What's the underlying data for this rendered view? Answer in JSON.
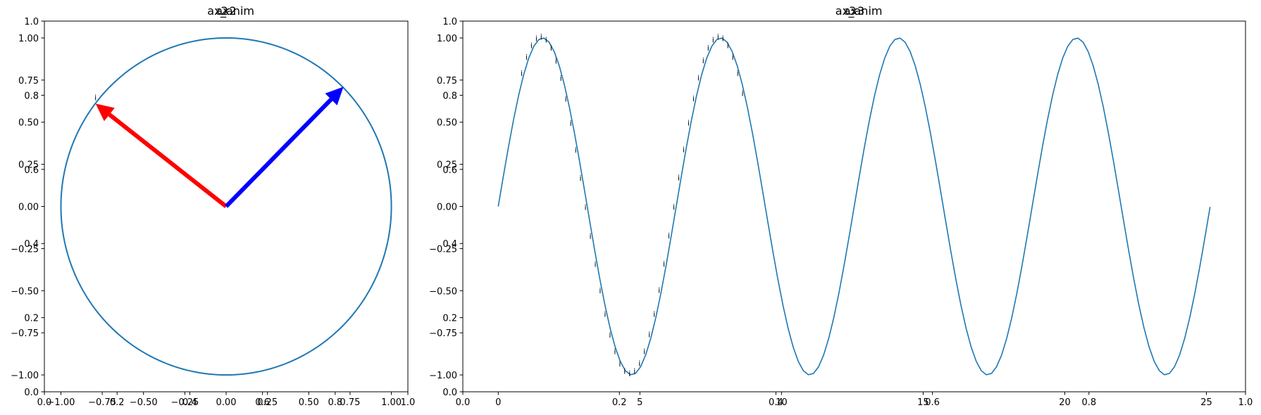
{
  "chart_data": [
    {
      "type": "line",
      "panel": "left",
      "titles": [
        "ax2",
        "ax2",
        "_anim"
      ],
      "twin_axes": {
        "base": {
          "xlim": [
            0.0,
            1.0
          ],
          "ylim": [
            0.0,
            1.0
          ],
          "xticks": [
            0.0,
            0.2,
            0.4,
            0.6,
            0.8,
            1.0
          ],
          "xtick_labels": [
            "0.0",
            "0.2",
            "0.4",
            "0.6",
            "0.8",
            "1.0"
          ],
          "yticks": [
            0.0,
            0.2,
            0.4,
            0.6,
            0.8,
            1.0
          ],
          "ytick_labels": [
            "0.0",
            "0.2",
            "0.4",
            "0.6",
            "0.8",
            "1.0"
          ]
        },
        "data": {
          "xlim": [
            -1.1,
            1.1
          ],
          "ylim": [
            -1.1,
            1.1
          ],
          "xticks": [
            -1.0,
            -0.75,
            -0.5,
            -0.25,
            0.0,
            0.25,
            0.5,
            0.75,
            1.0
          ],
          "xtick_labels": [
            "−1.00",
            "−0.75",
            "−0.50",
            "−0.25",
            "0.00",
            "0.25",
            "0.50",
            "0.75",
            "1.00"
          ],
          "yticks": [
            -1.0,
            -0.75,
            -0.5,
            -0.25,
            0.0,
            0.25,
            0.5,
            0.75,
            1.0
          ],
          "ytick_labels": [
            "−1.00",
            "−0.75",
            "−0.50",
            "−0.25",
            "0.00",
            "0.25",
            "0.50",
            "0.75",
            "1.00"
          ]
        }
      },
      "series": [
        {
          "kind": "circle",
          "center": [
            0,
            0
          ],
          "radius": 1.0,
          "color": "#1f77b4"
        }
      ],
      "arrows": [
        {
          "from": [
            0,
            0
          ],
          "to": [
            -0.79,
            0.61
          ],
          "color": "#ff0000"
        },
        {
          "from": [
            0,
            0
          ],
          "to": [
            0.71,
            0.71
          ],
          "color": "#0000ff"
        }
      ],
      "annotations": [
        {
          "text": "i",
          "x": -0.79,
          "y": 0.63
        }
      ]
    },
    {
      "type": "line",
      "panel": "right",
      "titles": [
        "ax3",
        "ax3",
        "_anim"
      ],
      "twin_axes": {
        "base": {
          "xlim": [
            0.0,
            1.0
          ],
          "ylim": [
            0.0,
            1.0
          ],
          "xticks": [
            0.0,
            0.2,
            0.4,
            0.6,
            0.8,
            1.0
          ],
          "xtick_labels": [
            "0.0",
            "0.2",
            "0.4",
            "0.6",
            "0.8",
            "1.0"
          ],
          "yticks": [
            0.0,
            0.2,
            0.4,
            0.6,
            0.8,
            1.0
          ],
          "ytick_labels": [
            "0.0",
            "0.2",
            "0.4",
            "0.6",
            "0.8",
            "1.0"
          ]
        },
        "data": {
          "xlim": [
            -1.25,
            26.38
          ],
          "ylim": [
            -1.1,
            1.1
          ],
          "xticks": [
            0,
            5,
            10,
            15,
            20,
            25
          ],
          "xtick_labels": [
            "0",
            "5",
            "10",
            "15",
            "20",
            "25"
          ],
          "yticks": [
            -1.0,
            -0.75,
            -0.5,
            -0.25,
            0.0,
            0.25,
            0.5,
            0.75,
            1.0
          ],
          "ytick_labels": [
            "−1.00",
            "−0.75",
            "−0.50",
            "−0.25",
            "0.00",
            "0.25",
            "0.50",
            "0.75",
            "1.00"
          ]
        }
      },
      "series": [
        {
          "kind": "function",
          "expr": "sin(x)",
          "x_range": [
            0,
            25.13
          ],
          "color": "#1f77b4"
        }
      ],
      "annotation_marks": {
        "text": "i",
        "x_range": [
          0.9,
          8.7
        ],
        "count": 46,
        "y_expr": "sin(x)"
      }
    }
  ]
}
